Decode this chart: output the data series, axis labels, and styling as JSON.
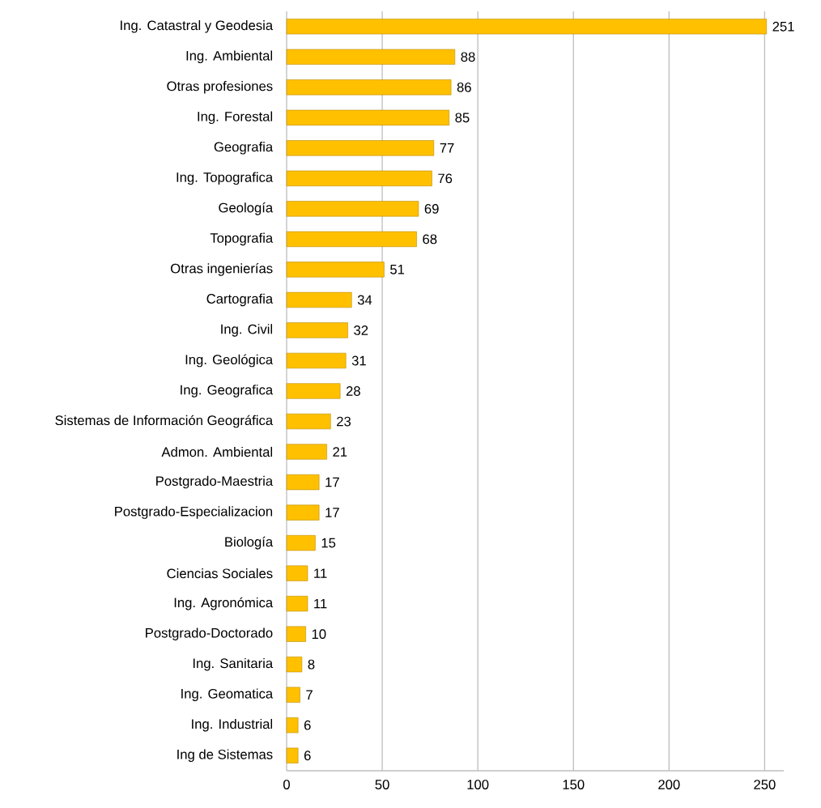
{
  "chart_data": {
    "type": "bar",
    "orientation": "horizontal",
    "categories": [
      "Ing. Catastral y Geodesia",
      "Ing. Ambiental",
      "Otras profesiones",
      "Ing. Forestal",
      "Geografia",
      "Ing. Topografica",
      "Geología",
      "Topografia",
      "Otras ingenierías",
      "Cartografia",
      "Ing. Civil",
      "Ing. Geológica",
      "Ing. Geografica",
      "Sistemas de Información Geográfica",
      "Admon. Ambiental",
      "Postgrado-Maestria",
      "Postgrado-Especializacion",
      "Biología",
      "Ciencias Sociales",
      "Ing. Agronómica",
      "Postgrado-Doctorado",
      "Ing. Sanitaria",
      "Ing. Geomatica",
      "Ing. Industrial",
      "Ing de Sistemas"
    ],
    "values": [
      251,
      88,
      86,
      85,
      77,
      76,
      69,
      68,
      51,
      34,
      32,
      31,
      28,
      23,
      21,
      17,
      17,
      15,
      11,
      11,
      10,
      8,
      7,
      6,
      6
    ],
    "color": "#ffc000",
    "xlim": [
      0,
      260
    ],
    "xticks": [
      0,
      50,
      100,
      150,
      200,
      250
    ],
    "grid": "x",
    "data_labels": true
  }
}
